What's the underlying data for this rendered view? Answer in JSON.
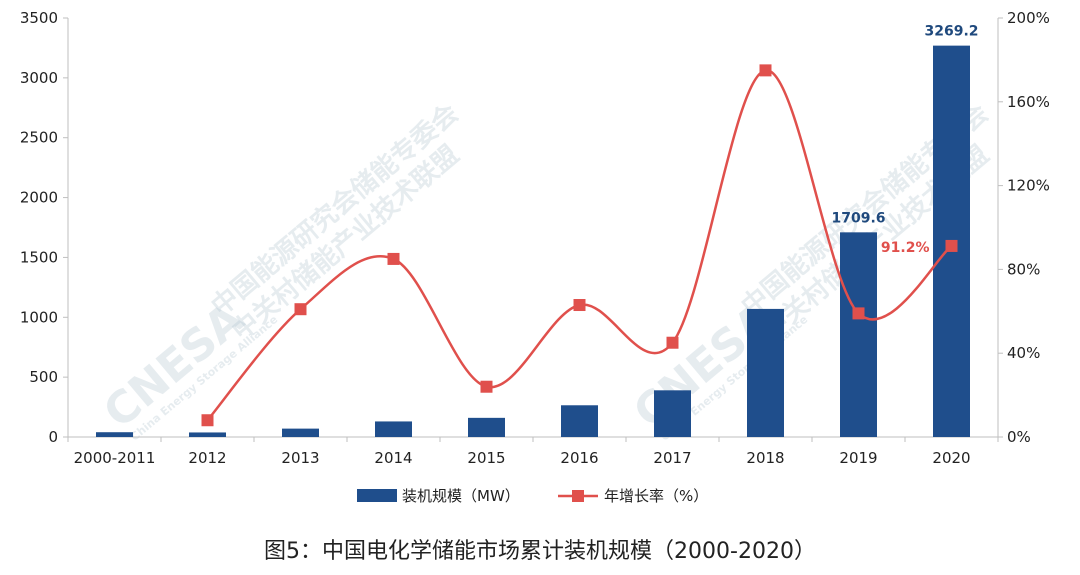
{
  "caption": "图5：中国电化学储能市场累计装机规模（2000-2020）",
  "chart_data": {
    "type": "bar",
    "categories": [
      "2000-2011",
      "2012",
      "2013",
      "2014",
      "2015",
      "2016",
      "2017",
      "2018",
      "2019",
      "2020"
    ],
    "series": [
      {
        "name": "装机规模（MW）",
        "type": "bar",
        "axis": "left",
        "color": "#1f4e8c",
        "values": [
          40,
          38,
          70,
          130,
          160,
          265,
          390,
          1070,
          1709.6,
          3269.2
        ]
      },
      {
        "name": "年增长率（%）",
        "type": "line",
        "axis": "right",
        "color": "#e0504c",
        "values": [
          null,
          8,
          61,
          85,
          24,
          63,
          45,
          175,
          59,
          91.2
        ]
      }
    ],
    "ylim": [
      0,
      3500
    ],
    "yticks": [
      "0",
      "500",
      "1000",
      "1500",
      "2000",
      "2500",
      "3000",
      "3500"
    ],
    "y2lim": [
      0,
      200
    ],
    "y2ticks": [
      "0%",
      "40%",
      "80%",
      "120%",
      "160%",
      "200%"
    ],
    "data_labels": {
      "bar": {
        "2019": "1709.6",
        "2020": "3269.2"
      },
      "line": {
        "2020": "91.2%"
      }
    },
    "legend_position": "bottom",
    "grid": false
  },
  "watermark": {
    "logo": "CNESA",
    "cn": "中国能源研究会储能专委会",
    "cn2": "中关村储能产业技术联盟",
    "en": "China Energy Storage Alliance"
  }
}
